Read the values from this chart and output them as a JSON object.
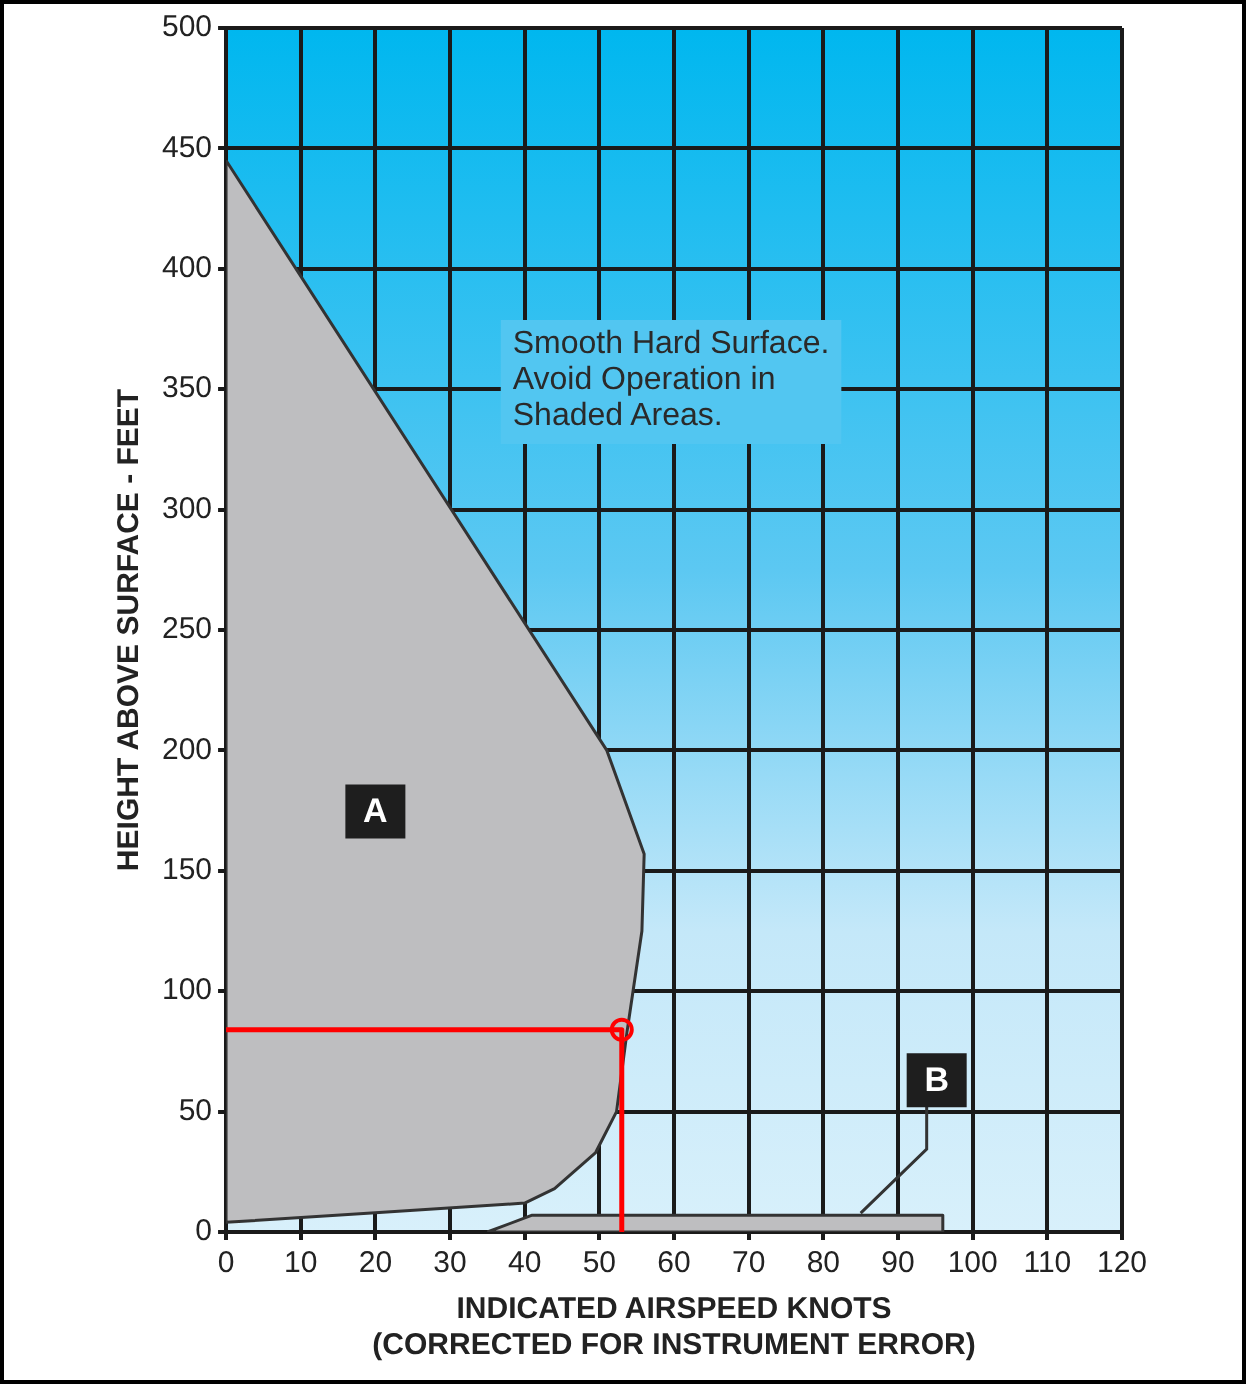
{
  "chart_data": {
    "type": "area",
    "xlabel": "INDICATED AIRSPEED KNOTS\n(CORRECTED FOR INSTRUMENT ERROR)",
    "ylabel": "HEIGHT ABOVE SURFACE - FEET",
    "xlim": [
      0,
      120
    ],
    "xticks": [
      0,
      10,
      20,
      30,
      40,
      50,
      60,
      70,
      80,
      90,
      100,
      110,
      120
    ],
    "ylim": [
      0,
      500
    ],
    "yticks": [
      0,
      50,
      100,
      150,
      200,
      250,
      300,
      350,
      400,
      450,
      500
    ],
    "grid": true,
    "legend": false,
    "series": [
      {
        "type": "area",
        "color": "#bebec0",
        "x": [
          0,
          51,
          56,
          55.7,
          53.7,
          52.3,
          49.5,
          44,
          40,
          20,
          0,
          0
        ],
        "values": [
          445,
          200,
          157,
          125,
          83,
          50,
          33,
          18,
          12,
          8,
          4,
          445
        ]
      },
      {
        "type": "area",
        "color": "#bebec0",
        "x": [
          35,
          41,
          96,
          96,
          35
        ],
        "values": [
          0,
          7,
          7,
          0,
          0
        ]
      },
      {
        "type": "line",
        "color": "#ff0000",
        "marker": "none",
        "x": [
          0,
          53,
          53
        ],
        "values": [
          84,
          84,
          0
        ]
      },
      {
        "type": "scatter",
        "color": "#ff0000",
        "marker": "circle",
        "x": [
          53
        ],
        "values": [
          84
        ]
      }
    ],
    "annotations": [
      "Smooth Hard Surface.\nAvoid Operation in\nShaded Areas.",
      {
        "text": "A",
        "x": 20,
        "y": 175
      },
      {
        "text": "B",
        "x": 85,
        "y": 7
      }
    ]
  }
}
